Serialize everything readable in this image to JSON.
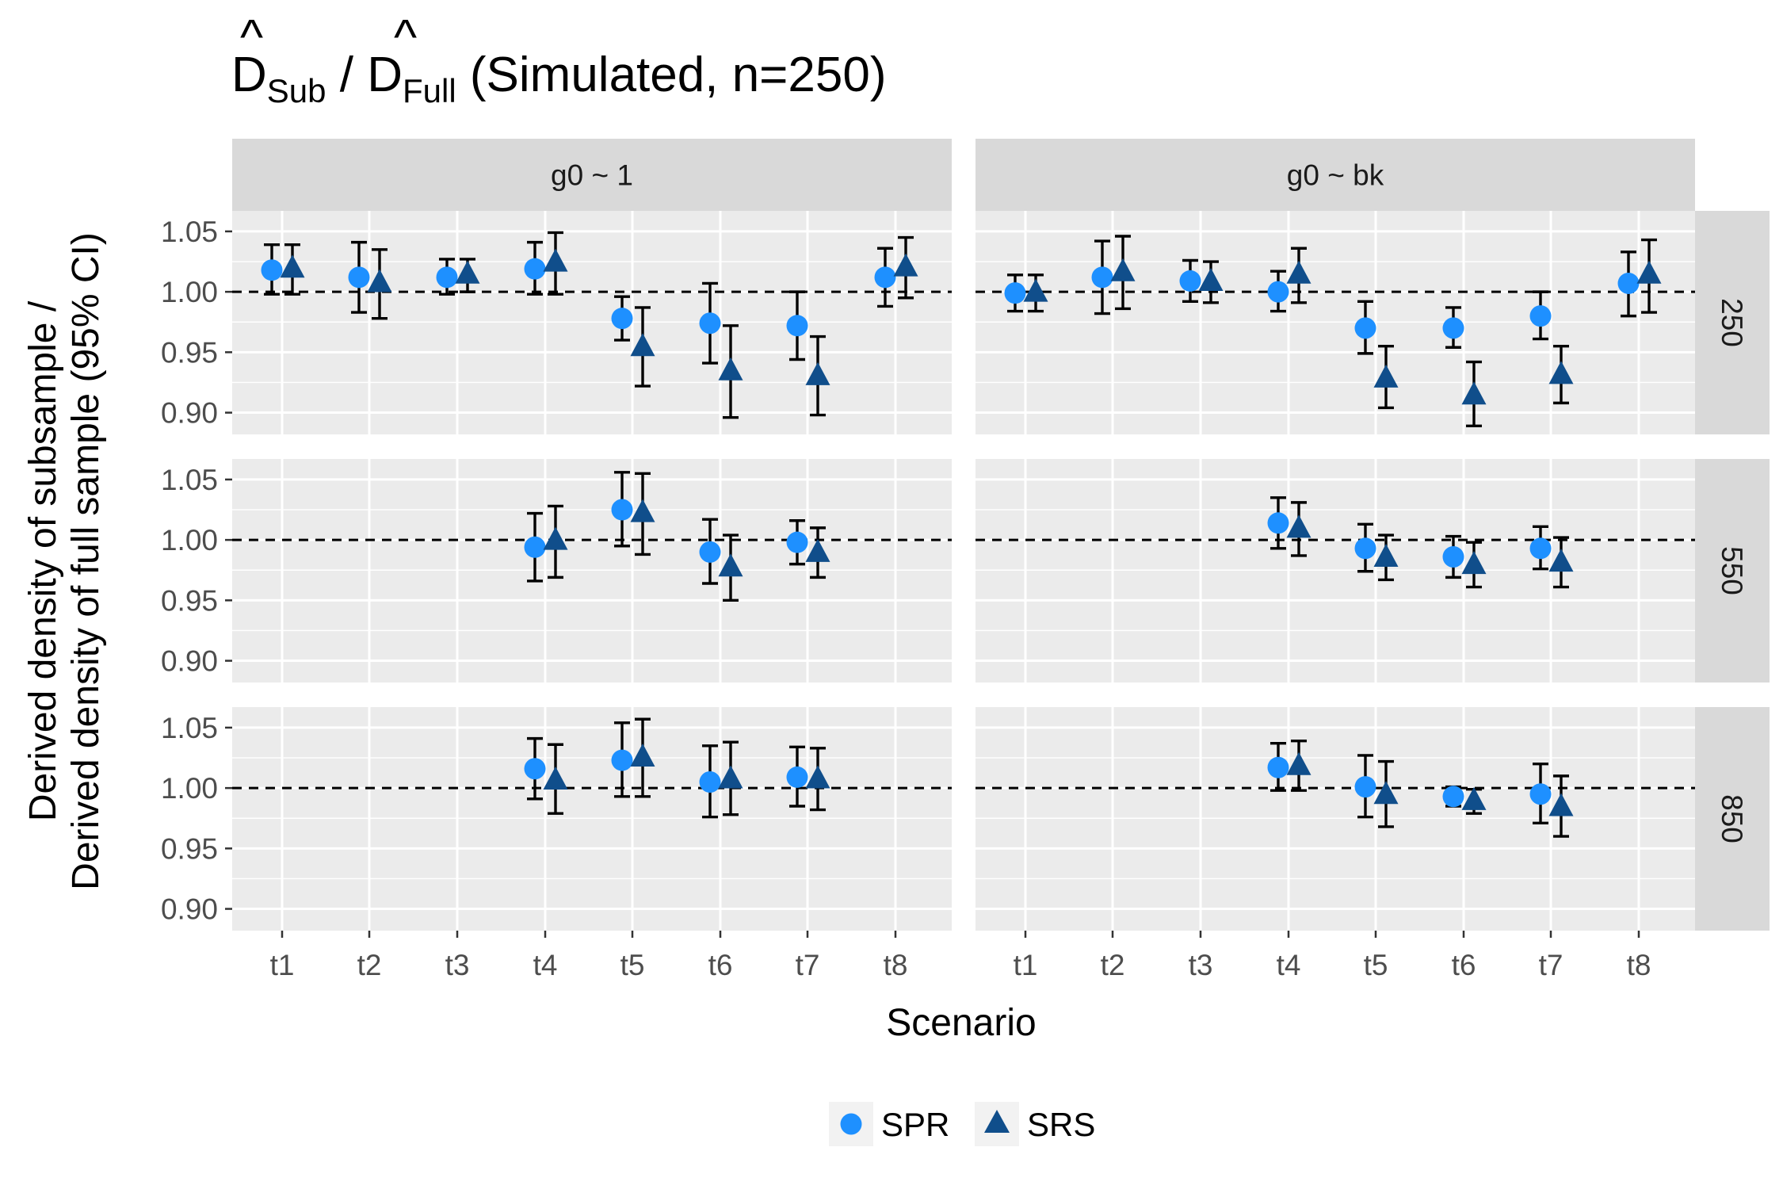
{
  "chart_data": {
    "type": "scatter",
    "title": {
      "prefix": "D",
      "prefix_sub": "Sub",
      "separator": " / ",
      "second": "D",
      "second_sub": "Full",
      "suffix": " (Simulated, n=250)",
      "hat": "^"
    },
    "xlabel": "Scenario",
    "ylabel_lines": [
      "Derived density of subsample /",
      "Derived density of full sample (95% CI)"
    ],
    "categories": [
      "t1",
      "t2",
      "t3",
      "t4",
      "t5",
      "t6",
      "t7",
      "t8"
    ],
    "ylim": [
      0.882,
      1.067
    ],
    "yticks": [
      0.9,
      0.95,
      1.0,
      1.05
    ],
    "yticks_labels": [
      "0.90",
      "0.95",
      "1.00",
      "1.05"
    ],
    "reference_line": 1.0,
    "grid": true,
    "legend": {
      "position": "bottom",
      "items": [
        {
          "label": "SPR",
          "shape": "circle",
          "color": "#1E90FF"
        },
        {
          "label": "SRS",
          "shape": "triangle",
          "color": "#104E8B"
        }
      ]
    },
    "facet_columns": [
      "g0 ~ 1",
      "g0 ~ bk"
    ],
    "facet_rows": [
      "250",
      "550",
      "850"
    ],
    "panels": [
      {
        "col": 0,
        "row": 0,
        "series": [
          {
            "name": "SPR",
            "points": [
              {
                "x": "t1",
                "y": 1.018,
                "lo": 0.998,
                "hi": 1.039
              },
              {
                "x": "t2",
                "y": 1.012,
                "lo": 0.983,
                "hi": 1.041
              },
              {
                "x": "t3",
                "y": 1.012,
                "lo": 0.998,
                "hi": 1.027
              },
              {
                "x": "t4",
                "y": 1.019,
                "lo": 0.998,
                "hi": 1.041
              },
              {
                "x": "t5",
                "y": 0.978,
                "lo": 0.96,
                "hi": 0.996
              },
              {
                "x": "t6",
                "y": 0.974,
                "lo": 0.941,
                "hi": 1.007
              },
              {
                "x": "t7",
                "y": 0.972,
                "lo": 0.944,
                "hi": 1.0
              },
              {
                "x": "t8",
                "y": 1.012,
                "lo": 0.988,
                "hi": 1.036
              }
            ]
          },
          {
            "name": "SRS",
            "points": [
              {
                "x": "t1",
                "y": 1.019,
                "lo": 0.998,
                "hi": 1.039
              },
              {
                "x": "t2",
                "y": 1.007,
                "lo": 0.978,
                "hi": 1.035
              },
              {
                "x": "t3",
                "y": 1.014,
                "lo": 1.0,
                "hi": 1.027
              },
              {
                "x": "t4",
                "y": 1.024,
                "lo": 0.998,
                "hi": 1.049
              },
              {
                "x": "t5",
                "y": 0.954,
                "lo": 0.922,
                "hi": 0.987
              },
              {
                "x": "t6",
                "y": 0.934,
                "lo": 0.896,
                "hi": 0.972
              },
              {
                "x": "t7",
                "y": 0.93,
                "lo": 0.898,
                "hi": 0.963
              },
              {
                "x": "t8",
                "y": 1.02,
                "lo": 0.995,
                "hi": 1.045
              }
            ]
          }
        ]
      },
      {
        "col": 1,
        "row": 0,
        "series": [
          {
            "name": "SPR",
            "points": [
              {
                "x": "t1",
                "y": 0.999,
                "lo": 0.984,
                "hi": 1.014
              },
              {
                "x": "t2",
                "y": 1.012,
                "lo": 0.982,
                "hi": 1.042
              },
              {
                "x": "t3",
                "y": 1.009,
                "lo": 0.992,
                "hi": 1.026
              },
              {
                "x": "t4",
                "y": 1.0,
                "lo": 0.984,
                "hi": 1.017
              },
              {
                "x": "t5",
                "y": 0.97,
                "lo": 0.949,
                "hi": 0.992
              },
              {
                "x": "t6",
                "y": 0.97,
                "lo": 0.954,
                "hi": 0.987
              },
              {
                "x": "t7",
                "y": 0.98,
                "lo": 0.961,
                "hi": 1.0
              },
              {
                "x": "t8",
                "y": 1.007,
                "lo": 0.98,
                "hi": 1.033
              }
            ]
          },
          {
            "name": "SRS",
            "points": [
              {
                "x": "t1",
                "y": 0.999,
                "lo": 0.984,
                "hi": 1.014
              },
              {
                "x": "t2",
                "y": 1.016,
                "lo": 0.986,
                "hi": 1.046
              },
              {
                "x": "t3",
                "y": 1.008,
                "lo": 0.991,
                "hi": 1.025
              },
              {
                "x": "t4",
                "y": 1.014,
                "lo": 0.991,
                "hi": 1.036
              },
              {
                "x": "t5",
                "y": 0.928,
                "lo": 0.904,
                "hi": 0.955
              },
              {
                "x": "t6",
                "y": 0.914,
                "lo": 0.889,
                "hi": 0.942
              },
              {
                "x": "t7",
                "y": 0.931,
                "lo": 0.908,
                "hi": 0.955
              },
              {
                "x": "t8",
                "y": 1.014,
                "lo": 0.983,
                "hi": 1.043
              }
            ]
          }
        ]
      },
      {
        "col": 0,
        "row": 1,
        "series": [
          {
            "name": "SPR",
            "points": [
              {
                "x": "t4",
                "y": 0.994,
                "lo": 0.966,
                "hi": 1.022
              },
              {
                "x": "t5",
                "y": 1.025,
                "lo": 0.995,
                "hi": 1.056
              },
              {
                "x": "t6",
                "y": 0.99,
                "lo": 0.964,
                "hi": 1.017
              },
              {
                "x": "t7",
                "y": 0.998,
                "lo": 0.98,
                "hi": 1.016
              }
            ]
          },
          {
            "name": "SRS",
            "points": [
              {
                "x": "t4",
                "y": 0.999,
                "lo": 0.969,
                "hi": 1.028
              },
              {
                "x": "t5",
                "y": 1.022,
                "lo": 0.988,
                "hi": 1.055
              },
              {
                "x": "t6",
                "y": 0.977,
                "lo": 0.95,
                "hi": 1.004
              },
              {
                "x": "t7",
                "y": 0.989,
                "lo": 0.969,
                "hi": 1.01
              }
            ]
          }
        ]
      },
      {
        "col": 1,
        "row": 1,
        "series": [
          {
            "name": "SPR",
            "points": [
              {
                "x": "t4",
                "y": 1.014,
                "lo": 0.993,
                "hi": 1.035
              },
              {
                "x": "t5",
                "y": 0.993,
                "lo": 0.974,
                "hi": 1.013
              },
              {
                "x": "t6",
                "y": 0.986,
                "lo": 0.969,
                "hi": 1.003
              },
              {
                "x": "t7",
                "y": 0.993,
                "lo": 0.976,
                "hi": 1.011
              }
            ]
          },
          {
            "name": "SRS",
            "points": [
              {
                "x": "t4",
                "y": 1.009,
                "lo": 0.987,
                "hi": 1.031
              },
              {
                "x": "t5",
                "y": 0.985,
                "lo": 0.967,
                "hi": 1.004
              },
              {
                "x": "t6",
                "y": 0.979,
                "lo": 0.961,
                "hi": 0.998
              },
              {
                "x": "t7",
                "y": 0.981,
                "lo": 0.961,
                "hi": 1.002
              }
            ]
          }
        ]
      },
      {
        "col": 0,
        "row": 2,
        "series": [
          {
            "name": "SPR",
            "points": [
              {
                "x": "t4",
                "y": 1.016,
                "lo": 0.991,
                "hi": 1.041
              },
              {
                "x": "t5",
                "y": 1.023,
                "lo": 0.993,
                "hi": 1.054
              },
              {
                "x": "t6",
                "y": 1.005,
                "lo": 0.976,
                "hi": 1.035
              },
              {
                "x": "t7",
                "y": 1.009,
                "lo": 0.985,
                "hi": 1.034
              }
            ]
          },
          {
            "name": "SRS",
            "points": [
              {
                "x": "t4",
                "y": 1.006,
                "lo": 0.979,
                "hi": 1.036
              },
              {
                "x": "t5",
                "y": 1.025,
                "lo": 0.993,
                "hi": 1.057
              },
              {
                "x": "t6",
                "y": 1.007,
                "lo": 0.978,
                "hi": 1.038
              },
              {
                "x": "t7",
                "y": 1.007,
                "lo": 0.982,
                "hi": 1.033
              }
            ]
          }
        ]
      },
      {
        "col": 1,
        "row": 2,
        "series": [
          {
            "name": "SPR",
            "points": [
              {
                "x": "t4",
                "y": 1.017,
                "lo": 0.998,
                "hi": 1.037
              },
              {
                "x": "t5",
                "y": 1.001,
                "lo": 0.976,
                "hi": 1.027
              },
              {
                "x": "t6",
                "y": 0.993,
                "lo": 0.985,
                "hi": 1.001
              },
              {
                "x": "t7",
                "y": 0.995,
                "lo": 0.971,
                "hi": 1.02
              }
            ]
          },
          {
            "name": "SRS",
            "points": [
              {
                "x": "t4",
                "y": 1.018,
                "lo": 0.998,
                "hi": 1.039
              },
              {
                "x": "t5",
                "y": 0.994,
                "lo": 0.968,
                "hi": 1.022
              },
              {
                "x": "t6",
                "y": 0.989,
                "lo": 0.979,
                "hi": 0.999
              },
              {
                "x": "t7",
                "y": 0.984,
                "lo": 0.96,
                "hi": 1.01
              }
            ]
          }
        ]
      }
    ]
  }
}
